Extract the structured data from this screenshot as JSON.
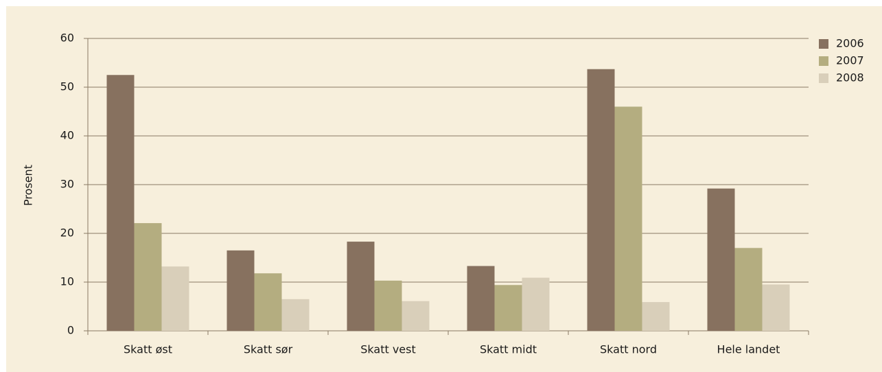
{
  "chart_data": {
    "type": "bar",
    "y_label": "Prosent",
    "categories": [
      "Skatt øst",
      "Skatt sør",
      "Skatt vest",
      "Skatt midt",
      "Skatt nord",
      "Hele landet"
    ],
    "series": [
      {
        "name": "2006",
        "color": "#87715f",
        "values": [
          52.5,
          16.5,
          18.3,
          13.3,
          53.7,
          29.2
        ]
      },
      {
        "name": "2007",
        "color": "#b4ad80",
        "values": [
          22.1,
          11.8,
          10.3,
          9.4,
          46.0,
          17.0
        ]
      },
      {
        "name": "2008",
        "color": "#d9cfba",
        "values": [
          13.2,
          6.5,
          6.1,
          10.9,
          5.9,
          9.5
        ]
      }
    ],
    "ylim": [
      0,
      60
    ],
    "yticks": [
      0,
      10,
      20,
      30,
      40,
      50,
      60
    ],
    "grid": true,
    "legend": "top-right"
  }
}
